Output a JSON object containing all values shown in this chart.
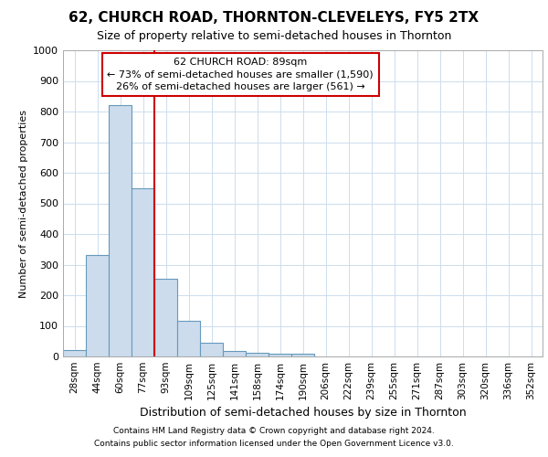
{
  "title1": "62, CHURCH ROAD, THORNTON-CLEVELEYS, FY5 2TX",
  "title2": "Size of property relative to semi-detached houses in Thornton",
  "xlabel": "Distribution of semi-detached houses by size in Thornton",
  "ylabel": "Number of semi-detached properties",
  "categories": [
    "28sqm",
    "44sqm",
    "60sqm",
    "77sqm",
    "93sqm",
    "109sqm",
    "125sqm",
    "141sqm",
    "158sqm",
    "174sqm",
    "190sqm",
    "206sqm",
    "222sqm",
    "239sqm",
    "255sqm",
    "271sqm",
    "287sqm",
    "303sqm",
    "320sqm",
    "336sqm",
    "352sqm"
  ],
  "values": [
    20,
    330,
    820,
    550,
    255,
    115,
    45,
    18,
    12,
    10,
    8,
    0,
    0,
    0,
    0,
    0,
    0,
    0,
    0,
    0,
    0
  ],
  "bar_color": "#ccdcec",
  "bar_edge_color": "#6699bb",
  "vline_color": "#cc0000",
  "vline_pos": 4,
  "annotation_line1": "62 CHURCH ROAD: 89sqm",
  "annotation_line2": "← 73% of semi-detached houses are smaller (1,590)",
  "annotation_line3": "26% of semi-detached houses are larger (561) →",
  "annotation_box_facecolor": "#ffffff",
  "annotation_box_edgecolor": "#cc0000",
  "ylim": [
    0,
    1000
  ],
  "yticks": [
    0,
    100,
    200,
    300,
    400,
    500,
    600,
    700,
    800,
    900,
    1000
  ],
  "grid_color": "#ccddee",
  "axes_bg": "#ffffff",
  "fig_bg": "#ffffff",
  "title1_fontsize": 11,
  "title2_fontsize": 9,
  "xlabel_fontsize": 9,
  "ylabel_fontsize": 8,
  "tick_fontsize": 8,
  "annotation_fontsize": 8,
  "footer1": "Contains HM Land Registry data © Crown copyright and database right 2024.",
  "footer2": "Contains public sector information licensed under the Open Government Licence v3.0.",
  "footer_fontsize": 6.5
}
